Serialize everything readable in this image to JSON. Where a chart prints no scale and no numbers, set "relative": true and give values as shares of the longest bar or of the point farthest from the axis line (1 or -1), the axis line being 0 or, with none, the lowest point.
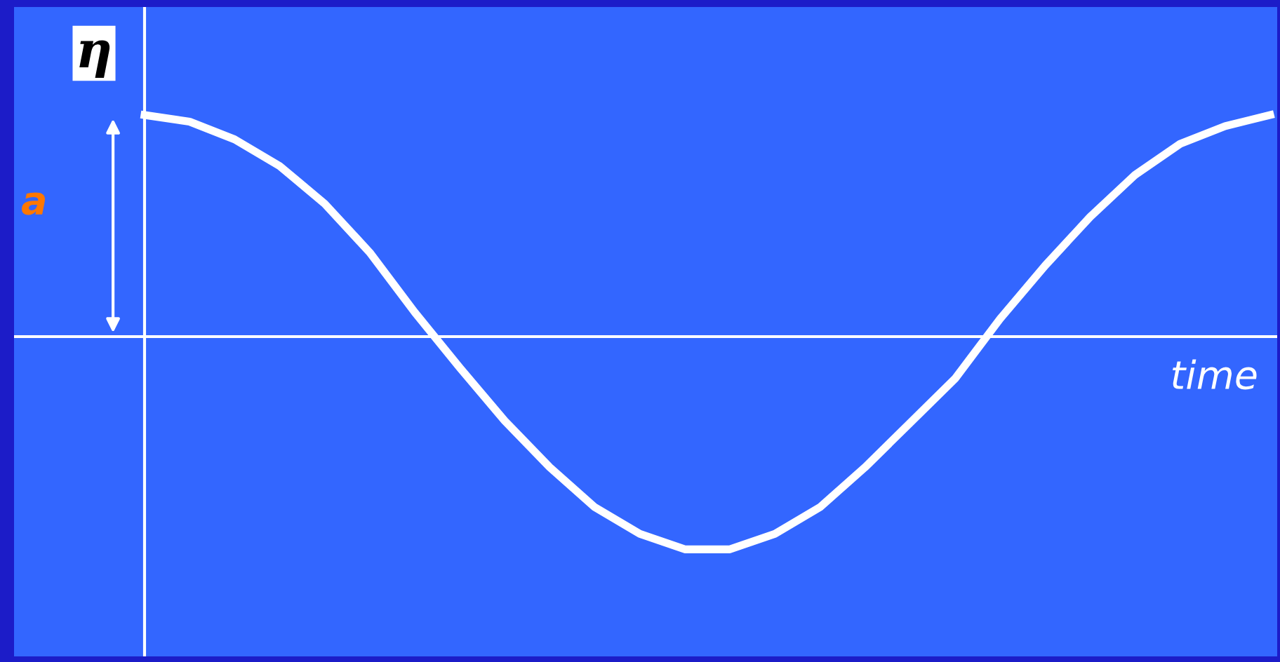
{
  "chart_data": {
    "type": "line",
    "relative": true,
    "title": "η",
    "xlabel": "time",
    "annotations": [
      "a"
    ],
    "categories": [
      null,
      null,
      null,
      null,
      null,
      null,
      null,
      null,
      null,
      null,
      null,
      null,
      null,
      null,
      null,
      null,
      null,
      null,
      null,
      null,
      null,
      null,
      null,
      null,
      null,
      null
    ],
    "series": [
      {
        "color": "#ffffff",
        "values": [
          1.0,
          0.97,
          0.89,
          0.77,
          0.6,
          0.38,
          0.11,
          -0.14,
          -0.38,
          -0.59,
          -0.77,
          -0.89,
          -0.96,
          -0.96,
          -0.89,
          -0.77,
          -0.59,
          -0.39,
          -0.19,
          0.08,
          0.32,
          0.54,
          0.73,
          0.87,
          0.95,
          1.0
        ]
      }
    ],
    "marker": "none",
    "line_style": "solid",
    "legend": false
  }
}
